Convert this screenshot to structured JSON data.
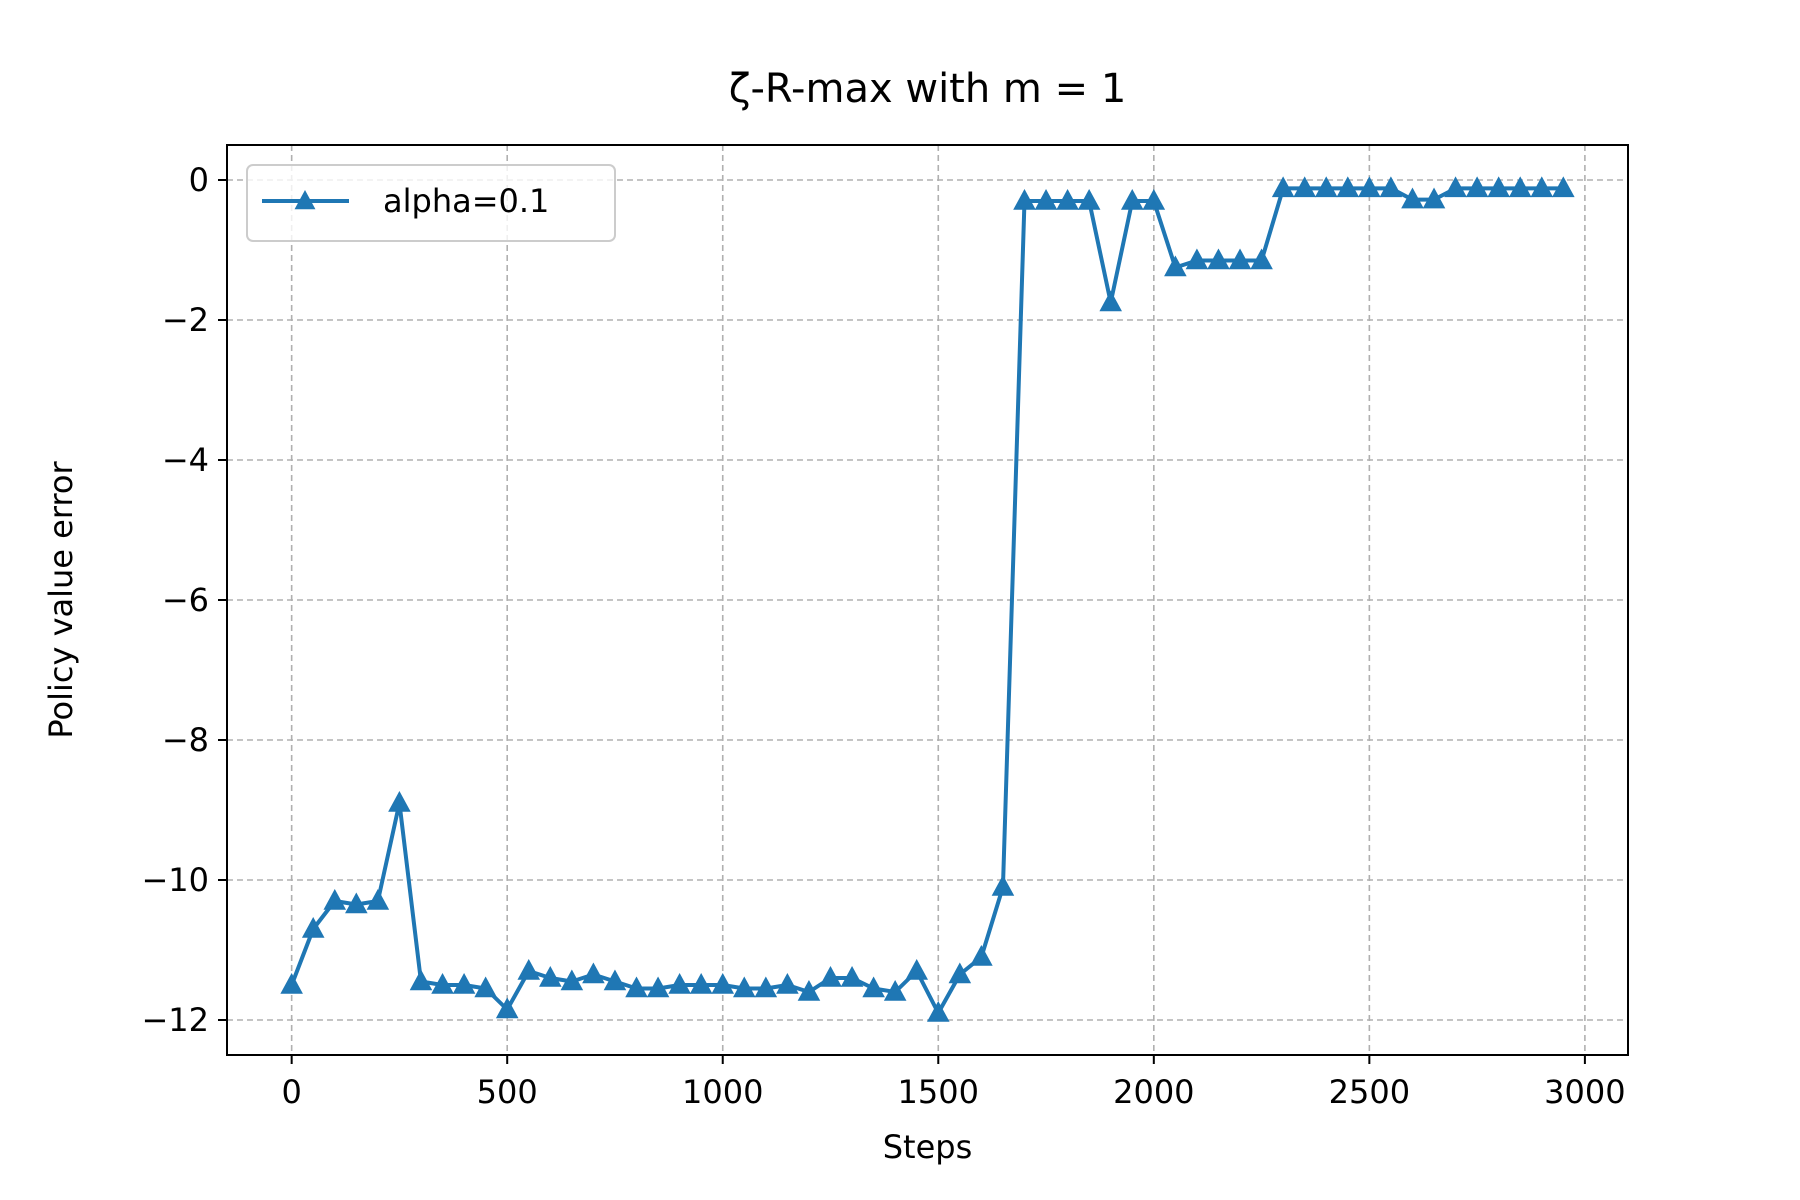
{
  "chart_data": {
    "type": "line",
    "title": "ζ-R-max with m = 1",
    "xlabel": "Steps",
    "ylabel": "Policy value error",
    "xlim": [
      -150,
      3100
    ],
    "ylim": [
      -12.5,
      0.5
    ],
    "xticks": [
      0,
      500,
      1000,
      1500,
      2000,
      2500,
      3000
    ],
    "xtick_labels": [
      "0",
      "500",
      "1000",
      "1500",
      "2000",
      "2500",
      "3000"
    ],
    "yticks": [
      0,
      -2,
      -4,
      -6,
      -8,
      -10,
      -12
    ],
    "ytick_labels": [
      "0",
      "−2",
      "−4",
      "−6",
      "−8",
      "−10",
      "−12"
    ],
    "grid": true,
    "legend_position": "top-left",
    "series": [
      {
        "name": "alpha=0.1",
        "color": "#1f77b4",
        "marker": "triangle-up",
        "x": [
          0,
          50,
          100,
          150,
          200,
          250,
          300,
          350,
          400,
          450,
          500,
          550,
          600,
          650,
          700,
          750,
          800,
          850,
          900,
          950,
          1000,
          1050,
          1100,
          1150,
          1200,
          1250,
          1300,
          1350,
          1400,
          1450,
          1500,
          1550,
          1600,
          1650,
          1700,
          1750,
          1800,
          1850,
          1900,
          1950,
          2000,
          2050,
          2100,
          2150,
          2200,
          2250,
          2300,
          2350,
          2400,
          2450,
          2500,
          2550,
          2600,
          2650,
          2700,
          2750,
          2800,
          2850,
          2900,
          2950
        ],
        "y": [
          -11.5,
          -10.7,
          -10.3,
          -10.35,
          -10.3,
          -8.9,
          -11.45,
          -11.5,
          -11.5,
          -11.55,
          -11.85,
          -11.3,
          -11.4,
          -11.45,
          -11.35,
          -11.45,
          -11.55,
          -11.55,
          -11.5,
          -11.5,
          -11.5,
          -11.55,
          -11.55,
          -11.5,
          -11.6,
          -11.4,
          -11.4,
          -11.55,
          -11.6,
          -11.3,
          -11.9,
          -11.35,
          -11.1,
          -10.1,
          -0.3,
          -0.3,
          -0.3,
          -0.3,
          -1.75,
          -0.3,
          -0.3,
          -1.25,
          -1.15,
          -1.15,
          -1.15,
          -1.15,
          -0.12,
          -0.12,
          -0.12,
          -0.12,
          -0.12,
          -0.12,
          -0.28,
          -0.28,
          -0.12,
          -0.12,
          -0.12,
          -0.12,
          -0.12,
          -0.12
        ]
      }
    ]
  }
}
